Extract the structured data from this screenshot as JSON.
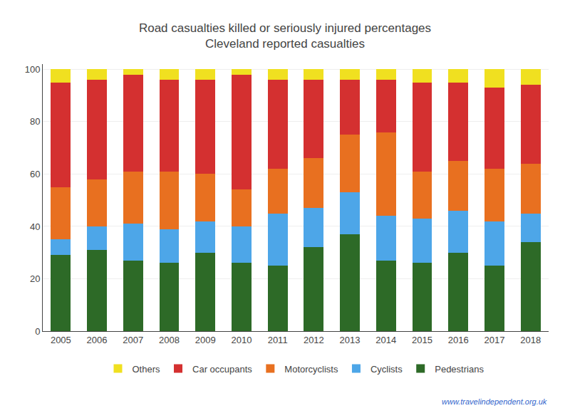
{
  "chart_data": {
    "type": "bar",
    "stacked": true,
    "title": "Road casualties killed or seriously injured percentages",
    "subtitle": "Cleveland reported casualties",
    "categories": [
      "2005",
      "2006",
      "2007",
      "2008",
      "2009",
      "2010",
      "2011",
      "2012",
      "2013",
      "2014",
      "2015",
      "2016",
      "2017",
      "2018"
    ],
    "series": [
      {
        "name": "Pedestrians",
        "color": "#2d6a27",
        "values": [
          29,
          31,
          27,
          26,
          30,
          26,
          25,
          32,
          37,
          27,
          26,
          30,
          25,
          34
        ]
      },
      {
        "name": "Cyclists",
        "color": "#4da6e8",
        "values": [
          6,
          9,
          14,
          13,
          12,
          14,
          20,
          15,
          16,
          17,
          17,
          16,
          17,
          11
        ]
      },
      {
        "name": "Motorcyclists",
        "color": "#e87020",
        "values": [
          20,
          18,
          20,
          22,
          18,
          14,
          17,
          19,
          22,
          32,
          18,
          19,
          20,
          19
        ]
      },
      {
        "name": "Car occupants",
        "color": "#d43030",
        "values": [
          40,
          38,
          37,
          35,
          36,
          44,
          34,
          30,
          21,
          20,
          34,
          30,
          31,
          30
        ]
      },
      {
        "name": "Others",
        "color": "#f0e020",
        "values": [
          5,
          4,
          2,
          4,
          4,
          2,
          4,
          4,
          4,
          4,
          5,
          5,
          7,
          6
        ]
      }
    ],
    "ylim": [
      0,
      102
    ],
    "yticks": [
      0,
      20,
      40,
      60,
      80,
      100
    ],
    "grid": true,
    "legend": "bottom",
    "annotations": [
      "www.travelindependent.org.uk"
    ]
  }
}
